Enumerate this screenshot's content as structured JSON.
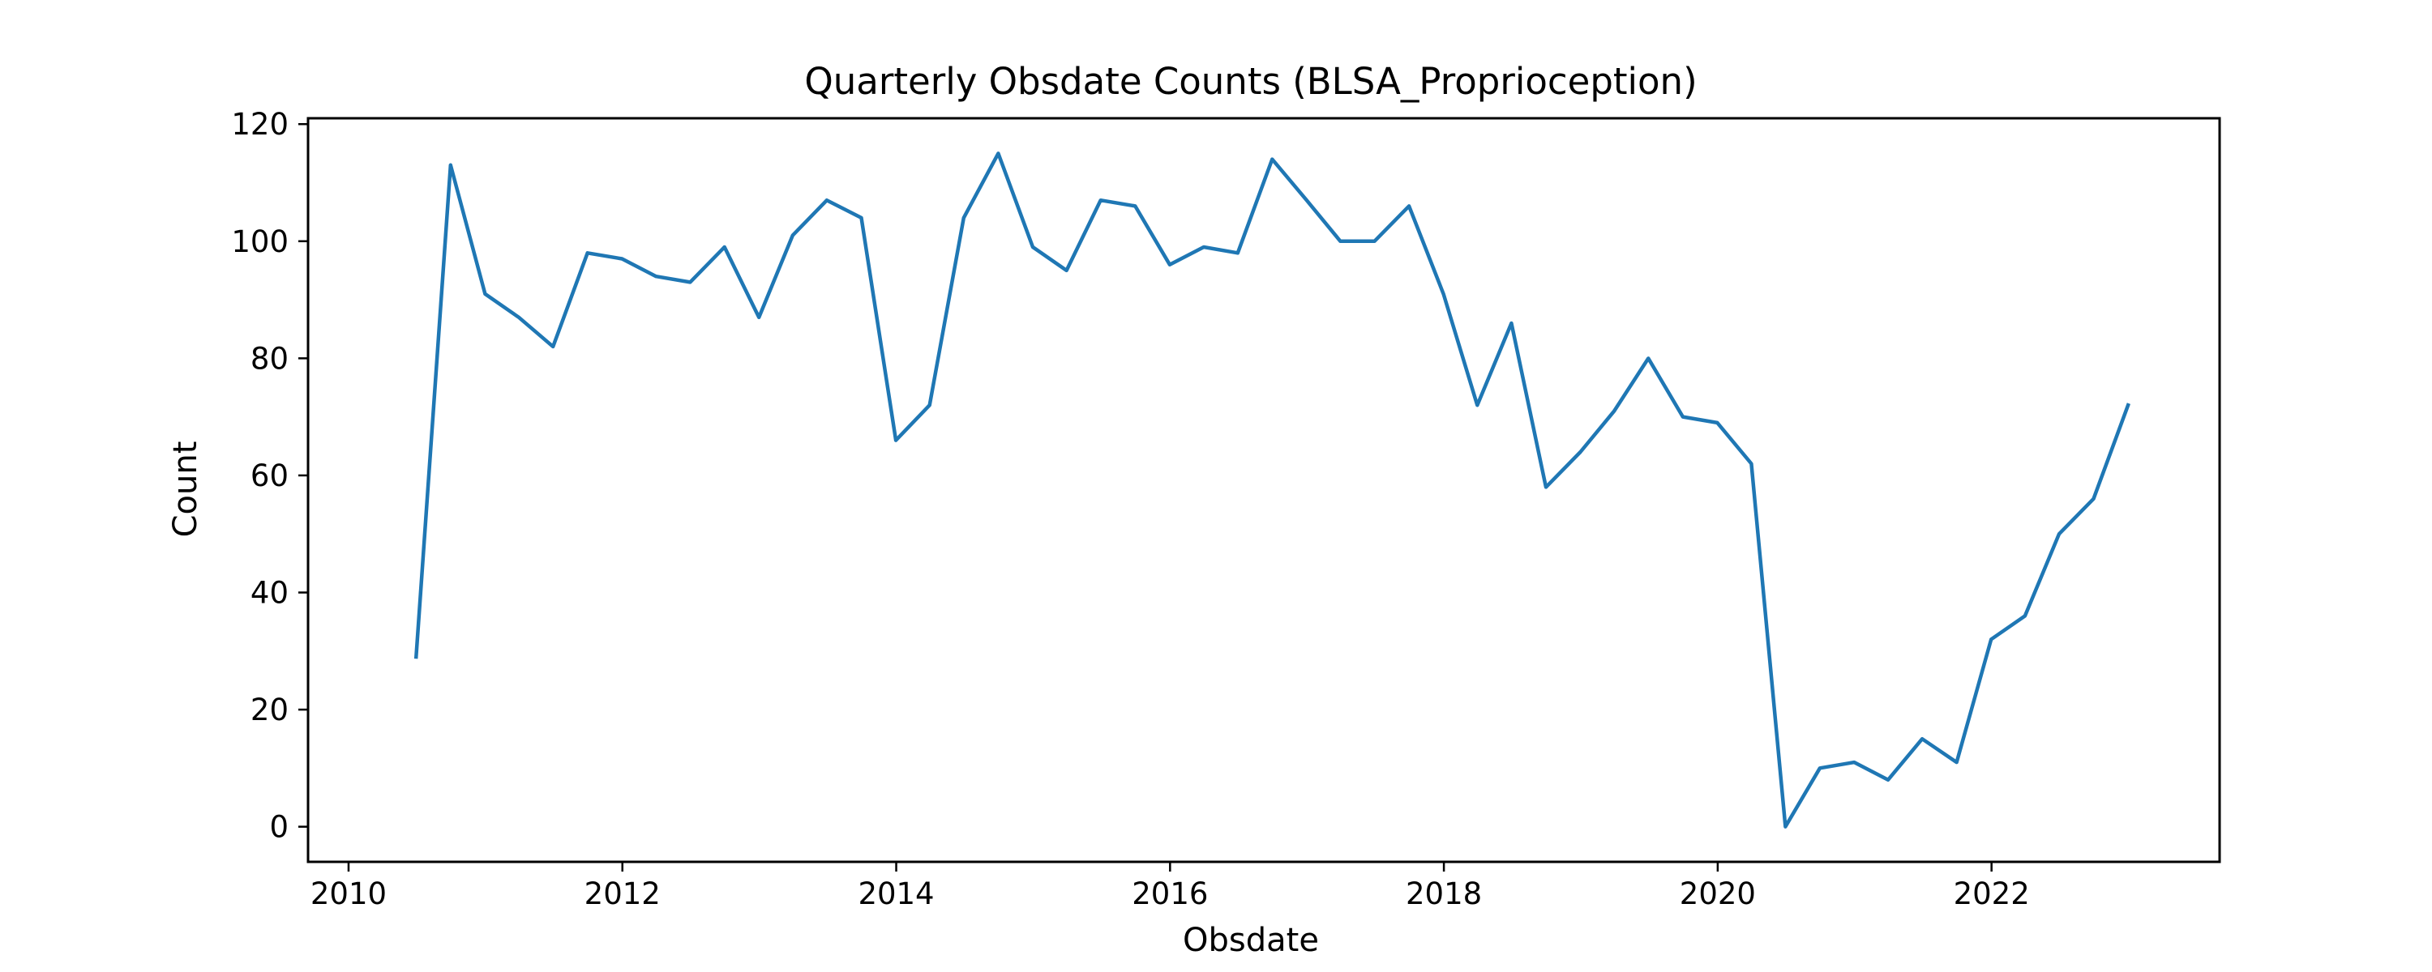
{
  "colors": {
    "series": "#1f77b4",
    "axes": "#000000",
    "background": "#ffffff"
  },
  "chart_data": {
    "type": "line",
    "title": "Quarterly Obsdate Counts (BLSA_Proprioception)",
    "xlabel": "Obsdate",
    "ylabel": "Count",
    "xlim": [
      "2009-09-15",
      "2023-09-01"
    ],
    "ylim": [
      -6,
      121
    ],
    "grid": false,
    "x_ticks": [
      "2010",
      "2012",
      "2014",
      "2016",
      "2018",
      "2020",
      "2022"
    ],
    "y_ticks": [
      "0",
      "20",
      "40",
      "60",
      "80",
      "100",
      "120"
    ],
    "series": [
      {
        "x": [
          "2010-06-30",
          "2010-09-30",
          "2010-12-31",
          "2011-03-31",
          "2011-06-30",
          "2011-09-30",
          "2011-12-31",
          "2012-03-31",
          "2012-06-30",
          "2012-09-30",
          "2012-12-31",
          "2013-03-31",
          "2013-06-30",
          "2013-09-30",
          "2013-12-31",
          "2014-03-31",
          "2014-06-30",
          "2014-09-30",
          "2014-12-31",
          "2015-03-31",
          "2015-06-30",
          "2015-09-30",
          "2015-12-31",
          "2016-03-31",
          "2016-06-30",
          "2016-09-30",
          "2016-12-31",
          "2017-03-31",
          "2017-06-30",
          "2017-09-30",
          "2017-12-31",
          "2018-03-31",
          "2018-06-30",
          "2018-09-30",
          "2018-12-31",
          "2019-03-31",
          "2019-06-30",
          "2019-09-30",
          "2019-12-31",
          "2020-03-31",
          "2020-06-30",
          "2020-09-30",
          "2020-12-31",
          "2021-03-31",
          "2021-06-30",
          "2021-09-30",
          "2021-12-31",
          "2022-03-31",
          "2022-06-30",
          "2022-09-30",
          "2022-12-31"
        ],
        "values": [
          29,
          113,
          91,
          87,
          82,
          98,
          97,
          94,
          93,
          99,
          87,
          101,
          107,
          104,
          66,
          72,
          104,
          115,
          99,
          95,
          107,
          106,
          96,
          99,
          98,
          114,
          107,
          100,
          100,
          106,
          91,
          72,
          86,
          58,
          64,
          71,
          80,
          70,
          69,
          62,
          0,
          10,
          11,
          8,
          15,
          11,
          32,
          36,
          50,
          56,
          72
        ]
      }
    ]
  }
}
